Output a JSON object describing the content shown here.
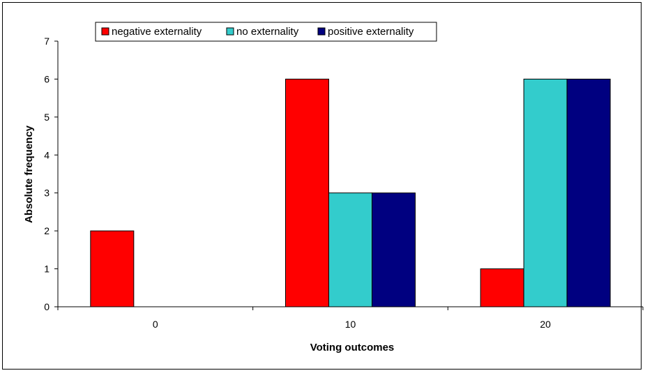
{
  "chart_data": {
    "type": "bar",
    "categories": [
      "0",
      "10",
      "20"
    ],
    "series": [
      {
        "name": "negative externality",
        "values": [
          2,
          6,
          1
        ],
        "color": "#ff0000"
      },
      {
        "name": "no externality",
        "values": [
          0,
          3,
          6
        ],
        "color": "#33cccc"
      },
      {
        "name": "positive externality",
        "values": [
          0,
          3,
          6
        ],
        "color": "#000080"
      }
    ],
    "xlabel": "Voting outcomes",
    "ylabel": "Absolute frequency",
    "ylim": [
      0,
      7
    ],
    "yticks": [
      "0",
      "1",
      "2",
      "3",
      "4",
      "5",
      "6",
      "7"
    ],
    "grid": false,
    "legend_position": "top"
  }
}
